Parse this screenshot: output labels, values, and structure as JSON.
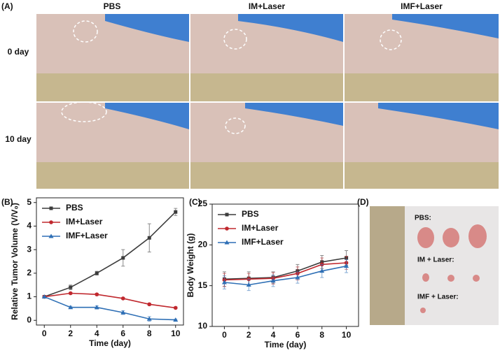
{
  "figure": {
    "panel_labels": [
      "(A)",
      "(B)",
      "(C)",
      "(D)"
    ],
    "photo_columns": [
      "PBS",
      "IM+Laser",
      "IMF+Laser"
    ],
    "photo_rows": [
      "0 day",
      "10 day"
    ],
    "tumor_labels": [
      "PBS:",
      "IM + Laser:",
      "IMF + Laser:"
    ]
  },
  "chart_data": [
    {
      "type": "line",
      "xlabel": "Time (day)",
      "ylabel": "Relative Tumor Volume (V/V₀)",
      "x": [
        0,
        2,
        4,
        6,
        8,
        10
      ],
      "xlim": [
        -0.6,
        10.6
      ],
      "xticks": [
        0,
        2,
        4,
        6,
        8,
        10
      ],
      "ylim": [
        -0.2,
        5.2
      ],
      "yticks": [
        0,
        1,
        2,
        3,
        4,
        5
      ],
      "legend": "upper left",
      "series": [
        {
          "name": "PBS",
          "color": "#3c3c3c",
          "marker": "square",
          "values": [
            1,
            1.4,
            2.0,
            2.65,
            3.5,
            4.6
          ],
          "errors": [
            0,
            0.1,
            0.08,
            0.35,
            0.6,
            0.15
          ]
        },
        {
          "name": "IM+Laser",
          "color": "#c0282e",
          "marker": "circle",
          "values": [
            1,
            1.15,
            1.1,
            0.93,
            0.68,
            0.53
          ],
          "errors": [
            0,
            0.04,
            0.05,
            0.04,
            0.05,
            0.04
          ]
        },
        {
          "name": "IMF+Laser",
          "color": "#2e6fb5",
          "marker": "triangle",
          "values": [
            1,
            0.55,
            0.55,
            0.33,
            0.06,
            0.02
          ],
          "errors": [
            0,
            0.05,
            0.07,
            0.08,
            0.1,
            0.03
          ]
        }
      ]
    },
    {
      "type": "line",
      "xlabel": "Time (day)",
      "ylabel": "Body Weight (g)",
      "x": [
        0,
        2,
        4,
        6,
        8,
        10
      ],
      "xlim": [
        -1,
        11
      ],
      "xticks": [
        0,
        2,
        4,
        6,
        8,
        10
      ],
      "ylim": [
        10,
        25
      ],
      "yticks": [
        10,
        15,
        20,
        25
      ],
      "legend": "upper left",
      "series": [
        {
          "name": "PBS",
          "color": "#3c3c3c",
          "marker": "square",
          "values": [
            15.8,
            15.9,
            16.0,
            16.8,
            17.9,
            18.4
          ],
          "errors": [
            0.9,
            0.8,
            0.7,
            0.8,
            0.8,
            0.9
          ]
        },
        {
          "name": "IM+Laser",
          "color": "#c0282e",
          "marker": "circle",
          "values": [
            15.7,
            15.8,
            15.9,
            16.5,
            17.6,
            17.8
          ],
          "errors": [
            0.8,
            0.7,
            0.7,
            0.8,
            0.8,
            0.8
          ]
        },
        {
          "name": "IMF+Laser",
          "color": "#2e6fb5",
          "marker": "triangle",
          "values": [
            15.4,
            15.1,
            15.6,
            16.0,
            16.8,
            17.4
          ],
          "errors": [
            0.8,
            0.7,
            0.7,
            0.7,
            0.8,
            0.8
          ]
        }
      ]
    }
  ]
}
